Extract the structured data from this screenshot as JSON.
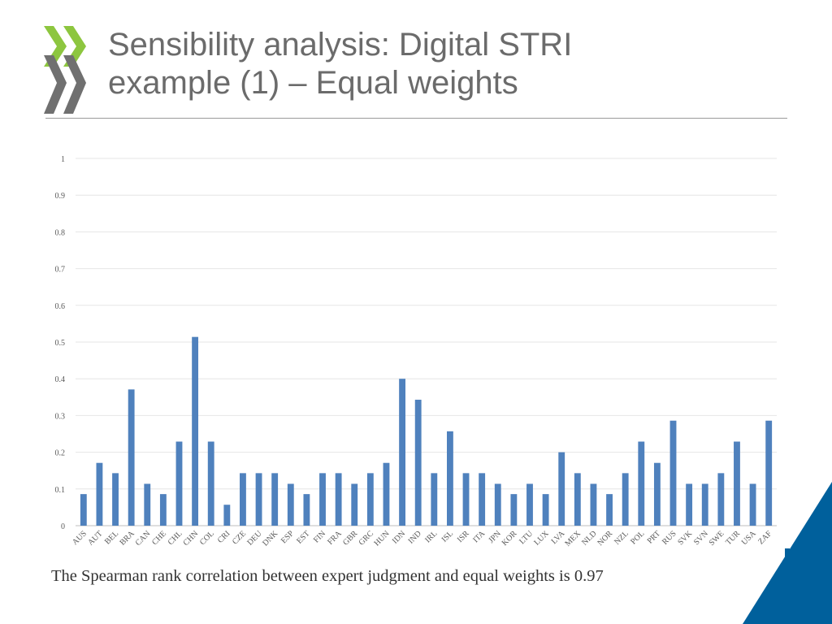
{
  "slide": {
    "title_lines": [
      "Sensibility analysis: Digital STRI",
      "example (1) – Equal weights"
    ],
    "caption": "The Spearman rank correlation between expert judgment and equal weights is 0.97"
  },
  "colors": {
    "bar": "#4f81bd",
    "logo_green": "#8dc63f",
    "logo_gray": "#707070",
    "title": "#6b6b6b",
    "corner_blue": "#00609c",
    "grid": "#e6e6e6"
  },
  "chart_data": {
    "type": "bar",
    "title": "",
    "xlabel": "",
    "ylabel": "",
    "ylim": [
      0,
      1
    ],
    "yticks": [
      0,
      0.1,
      0.2,
      0.3,
      0.4,
      0.5,
      0.6,
      0.7,
      0.8,
      0.9,
      1
    ],
    "grid": true,
    "categories": [
      "AUS",
      "AUT",
      "BEL",
      "BRA",
      "CAN",
      "CHE",
      "CHL",
      "CHN",
      "COL",
      "CRI",
      "CZE",
      "DEU",
      "DNK",
      "ESP",
      "EST",
      "FIN",
      "FRA",
      "GBR",
      "GRC",
      "HUN",
      "IDN",
      "IND",
      "IRL",
      "ISL",
      "ISR",
      "ITA",
      "JPN",
      "KOR",
      "LTU",
      "LUX",
      "LVA",
      "MEX",
      "NLD",
      "NOR",
      "NZL",
      "POL",
      "PRT",
      "RUS",
      "SVK",
      "SVN",
      "SWE",
      "TUR",
      "USA",
      "ZAF"
    ],
    "values": [
      0.086,
      0.171,
      0.143,
      0.371,
      0.114,
      0.086,
      0.229,
      0.514,
      0.229,
      0.057,
      0.143,
      0.143,
      0.143,
      0.114,
      0.086,
      0.143,
      0.143,
      0.114,
      0.143,
      0.171,
      0.4,
      0.343,
      0.143,
      0.257,
      0.143,
      0.143,
      0.114,
      0.086,
      0.114,
      0.086,
      0.2,
      0.143,
      0.114,
      0.086,
      0.143,
      0.229,
      0.171,
      0.286,
      0.114,
      0.114,
      0.143,
      0.229,
      0.114,
      0.286
    ]
  }
}
